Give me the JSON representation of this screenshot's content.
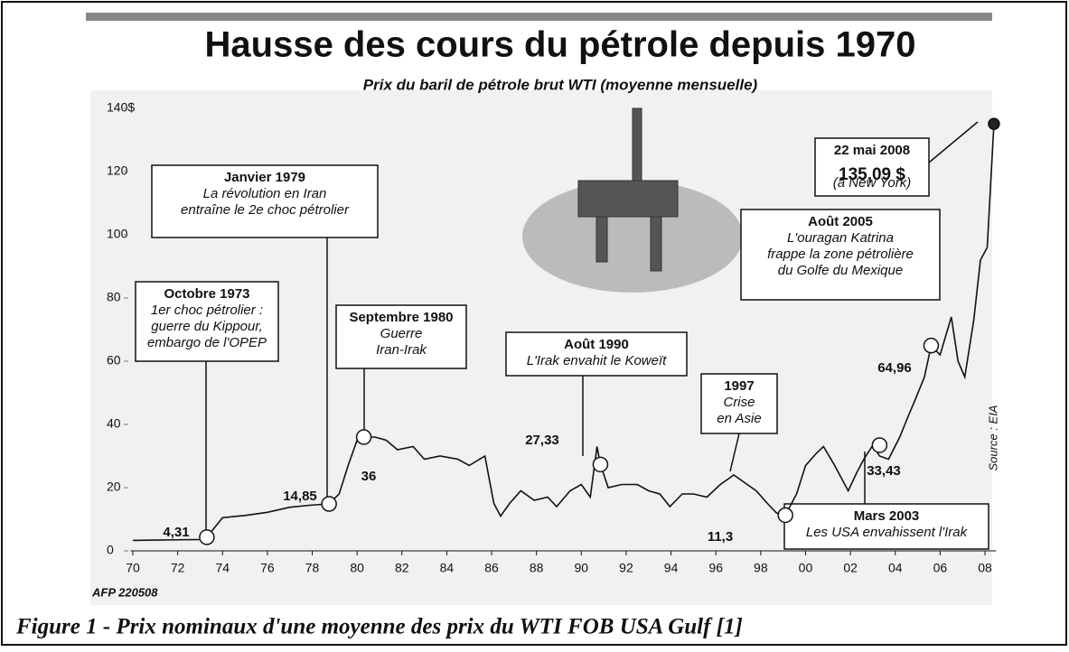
{
  "chart_data": {
    "type": "line",
    "title": "Hausse des cours du pétrole depuis 1970",
    "subtitle": "Prix du baril de pétrole brut WTI (moyenne mensuelle)",
    "source": "Source : EIA",
    "credit": "AFP 220508",
    "caption": "Figure 1 -  Prix nominaux d'une moyenne des prix du WTI FOB USA Gulf [1]",
    "color": "#111111",
    "grid": false,
    "xlim": [
      1969.9,
      2008.5
    ],
    "ylim": [
      0,
      140
    ],
    "xticks": [
      {
        "value": 1970,
        "label": "70"
      },
      {
        "value": 1972,
        "label": "72"
      },
      {
        "value": 1974,
        "label": "74"
      },
      {
        "value": 1976,
        "label": "76"
      },
      {
        "value": 1978,
        "label": "78"
      },
      {
        "value": 1980,
        "label": "80"
      },
      {
        "value": 1982,
        "label": "82"
      },
      {
        "value": 1984,
        "label": "84"
      },
      {
        "value": 1986,
        "label": "86"
      },
      {
        "value": 1988,
        "label": "88"
      },
      {
        "value": 1990,
        "label": "90"
      },
      {
        "value": 1992,
        "label": "92"
      },
      {
        "value": 1994,
        "label": "94"
      },
      {
        "value": 1996,
        "label": "96"
      },
      {
        "value": 1998,
        "label": "98"
      },
      {
        "value": 2000,
        "label": "00"
      },
      {
        "value": 2002,
        "label": "02"
      },
      {
        "value": 2004,
        "label": "04"
      },
      {
        "value": 2006,
        "label": "06"
      },
      {
        "value": 2008,
        "label": "08"
      }
    ],
    "yticks": [
      0,
      20,
      40,
      60,
      80,
      100,
      120,
      {
        "value": 140,
        "label": "140$"
      }
    ],
    "x": [
      1970,
      1971,
      1972,
      1973,
      1973.3,
      1974,
      1975,
      1976,
      1977,
      1978,
      1978.75,
      1979.2,
      1979.6,
      1980,
      1980.3,
      1980.8,
      1981.3,
      1981.8,
      1982.5,
      1983,
      1983.7,
      1984.5,
      1985,
      1985.7,
      1986.1,
      1986.4,
      1986.8,
      1987.3,
      1987.9,
      1988.5,
      1988.9,
      1989.5,
      1990,
      1990.4,
      1990.7,
      1990.85,
      1991.2,
      1991.8,
      1992.5,
      1993,
      1993.5,
      1993.95,
      1994.5,
      1995,
      1995.6,
      1996.2,
      1996.8,
      1997.2,
      1997.8,
      1998.3,
      1998.7,
      1999.1,
      1999.6,
      2000,
      2000.5,
      2000.8,
      2001.3,
      2001.9,
      2002.3,
      2002.6,
      2003,
      2003.3,
      2003.7,
      2004.2,
      2004.6,
      2004.9,
      2005.3,
      2005.6,
      2006,
      2006.5,
      2006.8,
      2007.1,
      2007.5,
      2007.8,
      2008.1,
      2008.4
    ],
    "values": [
      3.3,
      3.4,
      3.5,
      3.6,
      4.31,
      10.5,
      11.2,
      12.2,
      13.8,
      14.5,
      14.85,
      18,
      27,
      35,
      36,
      36,
      35,
      32,
      33,
      29,
      30,
      29,
      27,
      30,
      15,
      11,
      15,
      19,
      16,
      17,
      14,
      19,
      21,
      17,
      33,
      27.33,
      20,
      21,
      21,
      19,
      18,
      14,
      18,
      18,
      17,
      21,
      24,
      22,
      19,
      15,
      12,
      11.3,
      18,
      27,
      31,
      33,
      27,
      19,
      25,
      29,
      33.43,
      30,
      29,
      36,
      43,
      48,
      55,
      64.96,
      62,
      74,
      60,
      55,
      73,
      92,
      96,
      135.09
    ],
    "markers": [
      {
        "x": 1973.3,
        "y": 4.31,
        "label": "4,31"
      },
      {
        "x": 1978.75,
        "y": 14.85,
        "label": "14,85"
      },
      {
        "x": 1980.3,
        "y": 36,
        "label": "36"
      },
      {
        "x": 1990.85,
        "y": 27.33,
        "label": "27,33"
      },
      {
        "x": 1999.1,
        "y": 11.3,
        "label": "11,3"
      },
      {
        "x": 2003.3,
        "y": 33.43,
        "label": "33,43"
      },
      {
        "x": 2005.6,
        "y": 64.96,
        "label": "64,96"
      },
      {
        "x": 2008.4,
        "y": 135.09,
        "label": "135,09 $"
      }
    ],
    "callouts": [
      {
        "title": "Octobre 1973",
        "lines": [
          "1er choc pétrolier :",
          "guerre du Kippour,",
          "embargo de l'OPEP"
        ]
      },
      {
        "title": "Janvier 1979",
        "lines": [
          "La révolution en Iran",
          "entraîne le 2e choc pétrolier"
        ]
      },
      {
        "title": "Septembre 1980",
        "lines": [
          "Guerre",
          "Iran-Irak"
        ]
      },
      {
        "title": "Août 1990",
        "lines": [
          "L'Irak envahit le Koweït"
        ]
      },
      {
        "title": "1997",
        "lines": [
          "Crise",
          "en Asie"
        ]
      },
      {
        "title": "Mars 2003",
        "lines": [
          "Les USA envahissent l'Irak"
        ]
      },
      {
        "title": "Août 2005",
        "lines": [
          "L'ouragan Katrina",
          "frappe la zone pétrolière",
          "du Golfe du Mexique"
        ]
      },
      {
        "title": "22 mai 2008",
        "lines": [
          "(à New York)"
        ]
      }
    ]
  }
}
